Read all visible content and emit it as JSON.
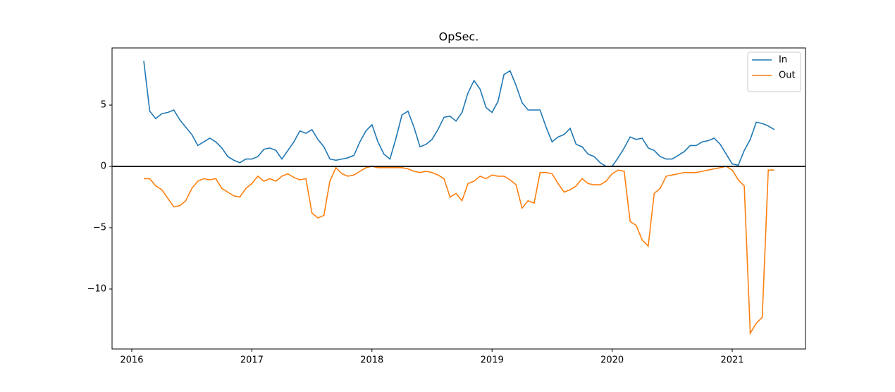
{
  "chart_data": {
    "type": "line",
    "title": "OpSec.",
    "x": [
      2016.1,
      2016.15,
      2016.2,
      2016.25,
      2016.3,
      2016.35,
      2016.4,
      2016.45,
      2016.5,
      2016.55,
      2016.6,
      2016.65,
      2016.7,
      2016.75,
      2016.8,
      2016.85,
      2016.9,
      2016.95,
      2017.0,
      2017.05,
      2017.1,
      2017.15,
      2017.2,
      2017.25,
      2017.3,
      2017.35,
      2017.4,
      2017.45,
      2017.5,
      2017.55,
      2017.6,
      2017.65,
      2017.7,
      2017.75,
      2017.8,
      2017.85,
      2017.9,
      2017.95,
      2018.0,
      2018.05,
      2018.1,
      2018.15,
      2018.2,
      2018.25,
      2018.3,
      2018.35,
      2018.4,
      2018.45,
      2018.5,
      2018.55,
      2018.6,
      2018.65,
      2018.7,
      2018.75,
      2018.8,
      2018.85,
      2018.9,
      2018.95,
      2019.0,
      2019.05,
      2019.1,
      2019.15,
      2019.2,
      2019.25,
      2019.3,
      2019.35,
      2019.4,
      2019.45,
      2019.5,
      2019.55,
      2019.6,
      2019.65,
      2019.7,
      2019.75,
      2019.8,
      2019.85,
      2019.9,
      2019.95,
      2020.0,
      2020.05,
      2020.1,
      2020.15,
      2020.2,
      2020.25,
      2020.3,
      2020.35,
      2020.4,
      2020.45,
      2020.5,
      2020.55,
      2020.6,
      2020.65,
      2020.7,
      2020.75,
      2020.8,
      2020.85,
      2020.9,
      2020.95,
      2021.0,
      2021.05,
      2021.1,
      2021.15,
      2021.2,
      2021.25,
      2021.3,
      2021.35
    ],
    "series": [
      {
        "name": "In",
        "color": "#1f77b4",
        "values": [
          8.6,
          4.5,
          3.9,
          4.3,
          4.4,
          4.6,
          3.8,
          3.2,
          2.6,
          1.7,
          2.0,
          2.3,
          2.0,
          1.5,
          0.8,
          0.5,
          0.3,
          0.6,
          0.6,
          0.8,
          1.4,
          1.5,
          1.3,
          0.6,
          1.3,
          2.0,
          2.9,
          2.7,
          3.0,
          2.2,
          1.6,
          0.6,
          0.5,
          0.6,
          0.7,
          0.9,
          2.0,
          2.9,
          3.4,
          2.0,
          1.0,
          0.6,
          2.3,
          4.2,
          4.5,
          3.2,
          1.6,
          1.8,
          2.2,
          3.0,
          4.0,
          4.1,
          3.7,
          4.4,
          6.0,
          7.0,
          6.3,
          4.8,
          4.4,
          5.3,
          7.5,
          7.8,
          6.6,
          5.2,
          4.6,
          4.6,
          4.6,
          3.2,
          2.0,
          2.4,
          2.6,
          3.1,
          1.8,
          1.6,
          1.0,
          0.8,
          0.3,
          0.0,
          0.0,
          0.7,
          1.5,
          2.4,
          2.2,
          2.3,
          1.5,
          1.3,
          0.8,
          0.6,
          0.6,
          0.9,
          1.2,
          1.7,
          1.7,
          2.0,
          2.1,
          2.3,
          1.8,
          1.0,
          0.2,
          0.1,
          1.3,
          2.2,
          3.6,
          3.5,
          3.3,
          3.0
        ]
      },
      {
        "name": "Out",
        "color": "#ff7f0e",
        "values": [
          -1.0,
          -1.0,
          -1.6,
          -1.9,
          -2.6,
          -3.3,
          -3.2,
          -2.8,
          -1.8,
          -1.2,
          -1.0,
          -1.1,
          -1.0,
          -1.8,
          -2.1,
          -2.4,
          -2.5,
          -1.8,
          -1.4,
          -0.8,
          -1.2,
          -1.0,
          -1.2,
          -0.8,
          -0.6,
          -0.9,
          -1.1,
          -1.0,
          -3.8,
          -4.2,
          -4.0,
          -1.2,
          -0.1,
          -0.6,
          -0.8,
          -0.7,
          -0.4,
          -0.1,
          0.0,
          -0.1,
          -0.1,
          -0.1,
          -0.1,
          -0.1,
          -0.2,
          -0.4,
          -0.5,
          -0.4,
          -0.5,
          -0.7,
          -1.0,
          -2.5,
          -2.2,
          -2.8,
          -1.4,
          -1.2,
          -0.8,
          -1.0,
          -0.7,
          -0.8,
          -0.8,
          -1.1,
          -1.5,
          -3.4,
          -2.8,
          -3.0,
          -0.5,
          -0.5,
          -0.6,
          -1.4,
          -2.1,
          -1.9,
          -1.6,
          -1.0,
          -1.4,
          -1.5,
          -1.5,
          -1.2,
          -0.6,
          -0.3,
          -0.4,
          -4.5,
          -4.8,
          -6.0,
          -6.5,
          -2.2,
          -1.8,
          -0.8,
          -0.7,
          -0.6,
          -0.5,
          -0.5,
          -0.5,
          -0.4,
          -0.3,
          -0.2,
          -0.1,
          0.0,
          -0.3,
          -1.1,
          -1.6,
          -13.6,
          -12.8,
          -12.3,
          -0.3,
          -0.3
        ]
      }
    ],
    "xlim": [
      2015.836,
      2021.61
    ],
    "xticks": [
      2016,
      2017,
      2018,
      2019,
      2020,
      2021
    ],
    "ylim": [
      -14.89,
      9.66
    ],
    "yticks": [
      {
        "value": -10,
        "label": "−10"
      },
      {
        "value": -5,
        "label": "−5"
      },
      0,
      5
    ],
    "axhline": 0,
    "legend": "upper right",
    "grid": false
  }
}
